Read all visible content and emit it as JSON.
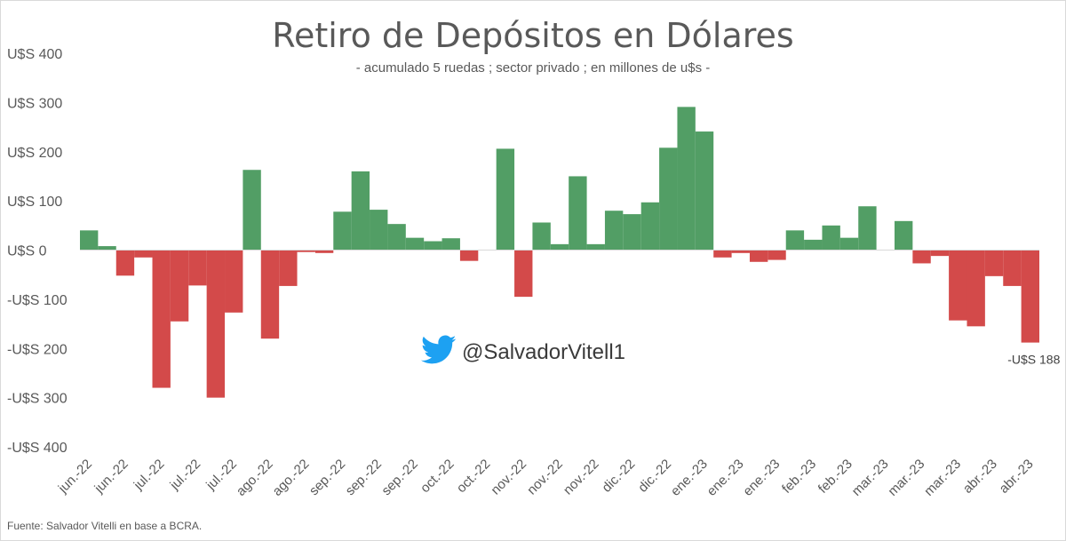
{
  "chart_data": {
    "type": "bar",
    "title": "Retiro de Depósitos en Dólares",
    "subtitle": "- acumulado 5 ruedas ; sector privado ; en millones de u$s -",
    "ylim": [
      -400,
      400
    ],
    "yticks": [
      400,
      300,
      200,
      100,
      0,
      -100,
      -200,
      -300,
      -400
    ],
    "ytick_labels": [
      "U$S 400",
      "U$S 300",
      "U$S 200",
      "U$S 100",
      "U$S 0",
      "-U$S 100",
      "-U$S 200",
      "-U$S 300",
      "-U$S 400"
    ],
    "xtick_labels": [
      "jun.-22",
      "jun.-22",
      "jul.-22",
      "jul.-22",
      "jul.-22",
      "ago.-22",
      "ago.-22",
      "sep.-22",
      "sep.-22",
      "sep.-22",
      "oct.-22",
      "oct.-22",
      "nov.-22",
      "nov.-22",
      "nov.-22",
      "dic.-22",
      "dic.-22",
      "ene.-23",
      "ene.-23",
      "ene.-23",
      "feb.-23",
      "feb.-23",
      "mar.-23",
      "mar.-23",
      "mar.-23",
      "abr.-23",
      "abr.-23"
    ],
    "values": [
      40,
      8,
      -52,
      -15,
      -280,
      -145,
      -72,
      -300,
      -127,
      163,
      -180,
      -73,
      -4,
      -6,
      78,
      160,
      82,
      53,
      25,
      18,
      24,
      -22,
      0,
      206,
      -95,
      56,
      12,
      150,
      12,
      80,
      73,
      97,
      208,
      291,
      241,
      -15,
      -6,
      -24,
      -20,
      40,
      21,
      50,
      25,
      89,
      0,
      59,
      -27,
      -12,
      -143,
      -155,
      -53,
      -73,
      -188
    ],
    "colors": {
      "positive": "#529e65",
      "negative": "#d34a4a"
    },
    "last_value_label": "-U$S 188",
    "grid": false,
    "legend": "none"
  },
  "watermark": {
    "handle": "@SalvadorVitell1",
    "icon": "twitter-bird-icon",
    "icon_color": "#1da1f2"
  },
  "source": "Fuente: Salvador Vitelli en base a BCRA."
}
